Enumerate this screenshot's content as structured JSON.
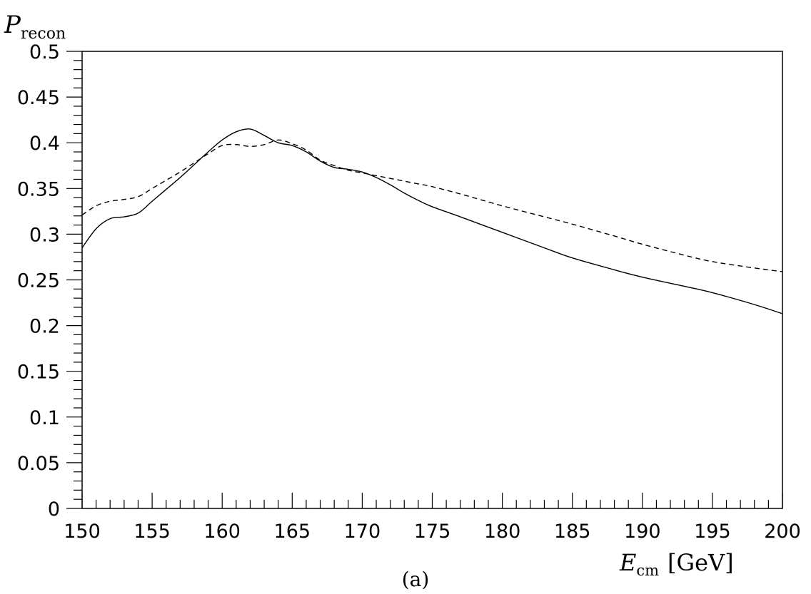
{
  "chart_data": {
    "type": "line",
    "ylabel": {
      "symbol": "P",
      "subscript": "recon"
    },
    "xlabel": {
      "symbol": "E",
      "subscript": "cm",
      "unit": "[GeV]"
    },
    "caption": "(a)",
    "xlim": [
      150,
      200
    ],
    "ylim": [
      0,
      0.5
    ],
    "x_ticks": [
      "150",
      "155",
      "160",
      "165",
      "170",
      "175",
      "180",
      "185",
      "190",
      "195",
      "200"
    ],
    "y_ticks": [
      "0",
      "0.05",
      "0.1",
      "0.15",
      "0.2",
      "0.25",
      "0.3",
      "0.35",
      "0.4",
      "0.45",
      "0.5"
    ],
    "grid": false,
    "series": [
      {
        "style": "solid",
        "x": [
          150,
          151,
          152,
          153,
          154,
          155,
          156,
          157,
          158,
          159,
          160,
          161,
          162,
          163,
          164,
          165,
          166,
          167,
          168,
          169,
          170,
          171,
          172,
          173,
          174,
          175,
          177,
          180,
          183,
          185,
          188,
          190,
          193,
          195,
          198,
          200
        ],
        "y": [
          0.285,
          0.306,
          0.317,
          0.319,
          0.323,
          0.336,
          0.349,
          0.362,
          0.376,
          0.39,
          0.403,
          0.412,
          0.415,
          0.408,
          0.4,
          0.397,
          0.39,
          0.38,
          0.373,
          0.371,
          0.368,
          0.362,
          0.354,
          0.345,
          0.337,
          0.33,
          0.319,
          0.302,
          0.285,
          0.274,
          0.261,
          0.253,
          0.243,
          0.236,
          0.223,
          0.213
        ]
      },
      {
        "style": "dashed",
        "x": [
          150,
          151,
          152,
          153,
          154,
          155,
          156,
          157,
          158,
          159,
          160,
          161,
          162,
          163,
          164,
          165,
          166,
          167,
          168,
          169,
          170,
          171,
          172,
          173,
          174,
          175,
          177,
          180,
          183,
          185,
          188,
          190,
          193,
          195,
          198,
          200
        ],
        "y": [
          0.321,
          0.331,
          0.336,
          0.338,
          0.341,
          0.35,
          0.359,
          0.368,
          0.378,
          0.388,
          0.397,
          0.398,
          0.396,
          0.398,
          0.403,
          0.399,
          0.392,
          0.381,
          0.375,
          0.37,
          0.367,
          0.364,
          0.361,
          0.358,
          0.355,
          0.352,
          0.344,
          0.331,
          0.319,
          0.311,
          0.298,
          0.289,
          0.277,
          0.27,
          0.263,
          0.259
        ]
      }
    ]
  }
}
